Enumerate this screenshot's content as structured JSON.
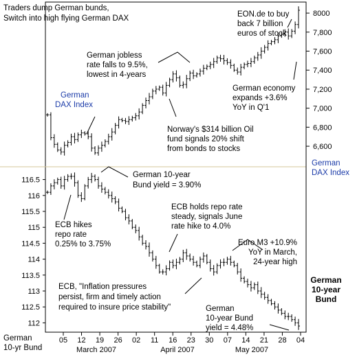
{
  "chart_data": [
    {
      "type": "ohlc",
      "name": "German DAX Index",
      "title_line1": "Traders dump German bunds,",
      "title_line2": "Switch into high flying German DAX",
      "inner_label_line1": "German",
      "inner_label_line2": "DAX Index",
      "axis_label_line1": "German",
      "axis_label_line2": "DAX Index",
      "y_ticks": [
        6600,
        6800,
        7000,
        7200,
        7400,
        7600,
        7800,
        8000
      ],
      "y_tick_labels": [
        "6,600",
        "6,800",
        "7,000",
        "7,200",
        "7,400",
        "7,600",
        "7,800",
        "8000"
      ],
      "ylim": [
        6420,
        8080
      ],
      "closes": [
        6930,
        6690,
        6620,
        6560,
        6540,
        6610,
        6640,
        6700,
        6670,
        6720,
        6740,
        6730,
        6700,
        6580,
        6530,
        6580,
        6610,
        6650,
        6700,
        6750,
        6820,
        6880,
        6870,
        6860,
        6880,
        6900,
        6920,
        6960,
        7030,
        7080,
        7120,
        7180,
        7200,
        7220,
        7160,
        7240,
        7300,
        7360,
        7320,
        7240,
        7250,
        7310,
        7370,
        7340,
        7360,
        7390,
        7420,
        7440,
        7460,
        7490,
        7530,
        7520,
        7500,
        7480,
        7450,
        7400,
        7380,
        7430,
        7460,
        7470,
        7490,
        7530,
        7560,
        7600,
        7640,
        7680,
        7700,
        7720,
        7760,
        7780,
        7800,
        7760,
        7810,
        7880,
        8030
      ],
      "annotations": [
        {
          "lines": [
            "German jobless",
            "rate falls to 9.5%,",
            "lowest in 4-years"
          ]
        },
        {
          "lines": [
            "EON.de to buy",
            "back 7 billion",
            "euros of stock"
          ]
        },
        {
          "lines": [
            "German economy",
            "expands +3.6%",
            "YoY in Q'1"
          ]
        },
        {
          "lines": [
            "Norway's $314 billion Oil",
            "fund signals 20% shift",
            "from bonds to stocks"
          ]
        }
      ]
    },
    {
      "type": "ohlc",
      "name": "German 10-year Bund",
      "inner_label_line1": "German",
      "inner_label_line2": "10-year",
      "inner_label_line3": "Bund",
      "axis_label_line1": "German",
      "axis_label_line2": "10-yr Bund",
      "y_ticks": [
        112,
        112.5,
        113,
        113.5,
        114,
        114.5,
        115,
        115.5,
        116,
        116.5
      ],
      "ylim": [
        111.75,
        116.75
      ],
      "x_tick_labels": [
        "05",
        "12",
        "19",
        "26",
        "02",
        "11",
        "16",
        "23",
        "30",
        "07",
        "14",
        "21",
        "28",
        "04"
      ],
      "month_labels": [
        "March 2007",
        "April 2007",
        "May 2007"
      ],
      "closes": [
        116.1,
        116.3,
        116.4,
        116.5,
        116.3,
        116.5,
        116.6,
        116.6,
        116.4,
        116.0,
        115.9,
        116.3,
        116.5,
        116.6,
        116.5,
        116.3,
        116.2,
        116.1,
        116.0,
        115.9,
        115.8,
        115.6,
        115.5,
        115.3,
        115.2,
        115.0,
        114.9,
        114.7,
        114.5,
        114.4,
        114.2,
        114.0,
        113.8,
        113.6,
        113.6,
        113.7,
        113.9,
        113.8,
        113.9,
        114.0,
        114.2,
        114.1,
        114.0,
        113.9,
        113.8,
        114.0,
        114.1,
        113.9,
        113.7,
        113.6,
        113.8,
        113.9,
        113.9,
        114.0,
        113.9,
        113.8,
        113.6,
        113.4,
        113.3,
        113.2,
        113.1,
        113.2,
        113.0,
        112.9,
        112.8,
        112.7,
        112.6,
        112.5,
        112.4,
        112.3,
        112.2,
        112.2,
        112.1,
        112.0,
        111.9
      ],
      "annotations": [
        {
          "lines": [
            "German 10-year",
            "Bund yield = 3.90%"
          ]
        },
        {
          "lines": [
            "ECB hikes",
            "repo rate",
            "0.25% to 3.75%"
          ]
        },
        {
          "lines": [
            "ECB holds repo rate",
            "steady, signals June",
            "rate hike to 4.0%"
          ]
        },
        {
          "lines": [
            "Euro M3 +10.9%",
            "YoY in March,",
            "24-year high"
          ]
        },
        {
          "lines": [
            "ECB, \"Inflation pressures",
            "persist, firm and timely action",
            "required to insure price stability\""
          ]
        },
        {
          "lines": [
            "German",
            "10-year Bund",
            "yield = 4.48%"
          ]
        }
      ]
    }
  ],
  "colors": {
    "bars": "#000000",
    "separator": "#d6c79a",
    "accent_text": "#1a3aa8",
    "background": "#ffffff"
  }
}
